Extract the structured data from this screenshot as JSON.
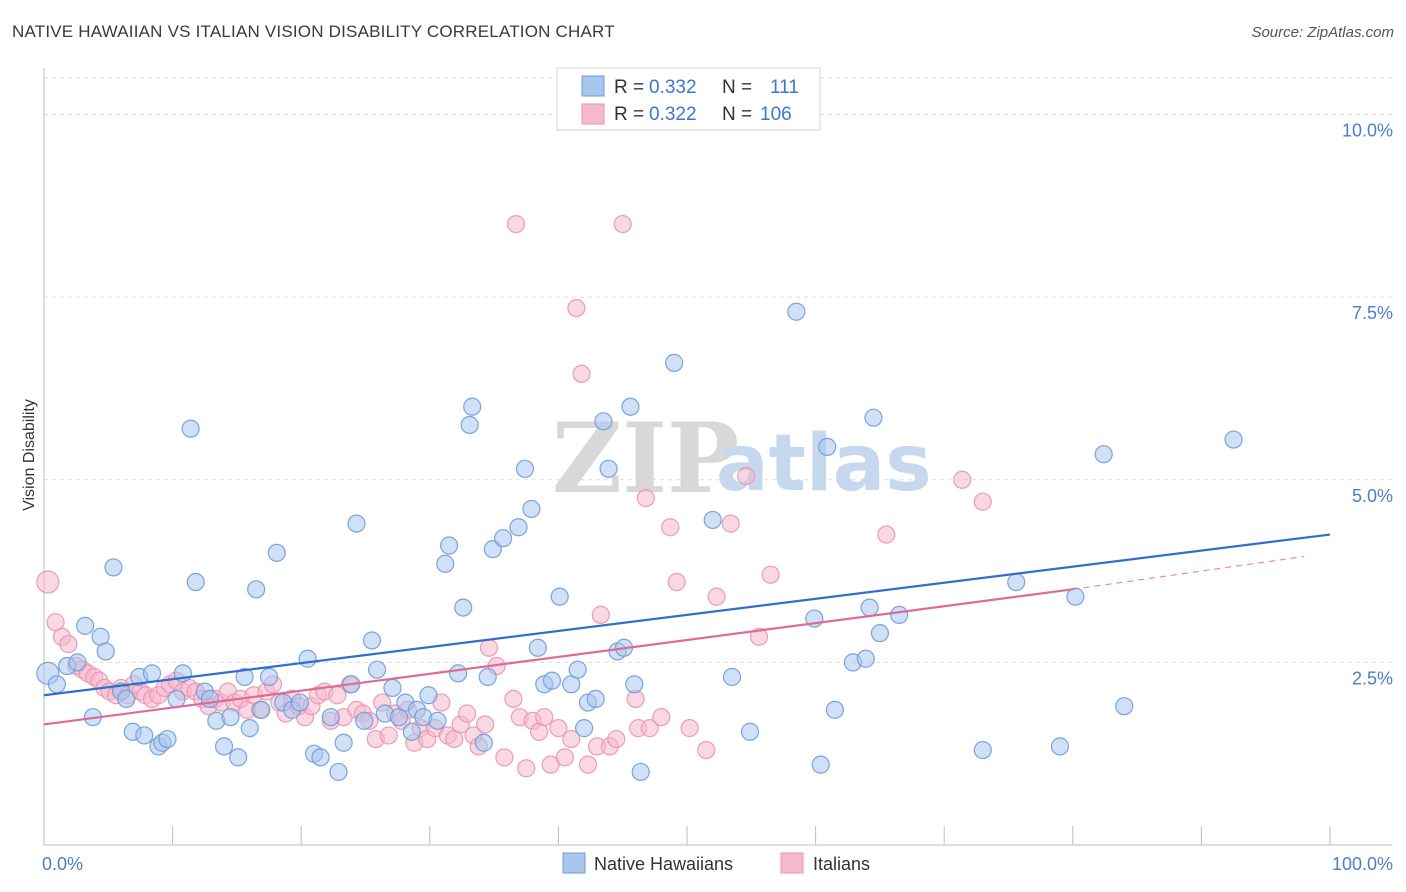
{
  "title": "NATIVE HAWAIIAN VS ITALIAN VISION DISABILITY CORRELATION CHART",
  "source": "Source: ZipAtlas.com",
  "watermark": {
    "zip": "ZIP",
    "atlas": "atlas"
  },
  "legend": {
    "rows": [
      {
        "r_label": "R = ",
        "r_value": "0.332",
        "n_label": "N = ",
        "n_value": "111"
      },
      {
        "r_label": "R = ",
        "r_value": "0.322",
        "n_label": "N = ",
        "n_value": "106"
      }
    ]
  },
  "colors": {
    "blue_fill": "#a9c6ee",
    "blue_stroke": "#6d9bd8",
    "blue_line": "#2f6fcc",
    "pink_fill": "#f5b8cc",
    "pink_stroke": "#e993b0",
    "pink_line": "#e06a97"
  },
  "chart_data": {
    "type": "scatter",
    "title": "NATIVE HAWAIIAN VS ITALIAN VISION DISABILITY CORRELATION CHART",
    "xlabel": "",
    "ylabel": "Vision Disability",
    "xlim": [
      0,
      100
    ],
    "ylim": [
      0,
      10.5
    ],
    "x_tick_labels": [
      "0.0%",
      "100.0%"
    ],
    "y_ticks": [
      2.5,
      5.0,
      7.5,
      10.0
    ],
    "y_tick_labels": [
      "2.5%",
      "5.0%",
      "7.5%",
      "10.0%"
    ],
    "grid": true,
    "legend_position": "top-center",
    "series": [
      {
        "name": "Native Hawaiians",
        "r": 0.332,
        "n": 111,
        "trend": {
          "x": [
            0,
            100
          ],
          "y": [
            2.05,
            4.25
          ]
        },
        "points": [
          [
            0.3,
            2.35
          ],
          [
            1.0,
            2.2
          ],
          [
            1.8,
            2.45
          ],
          [
            2.6,
            2.5
          ],
          [
            3.2,
            3.0
          ],
          [
            3.8,
            1.75
          ],
          [
            4.4,
            2.85
          ],
          [
            4.8,
            2.65
          ],
          [
            5.4,
            3.8
          ],
          [
            6.0,
            2.1
          ],
          [
            6.4,
            2.0
          ],
          [
            6.9,
            1.55
          ],
          [
            7.4,
            2.3
          ],
          [
            7.8,
            1.5
          ],
          [
            8.4,
            2.35
          ],
          [
            8.9,
            1.35
          ],
          [
            9.2,
            1.4
          ],
          [
            9.6,
            1.45
          ],
          [
            10.3,
            2.0
          ],
          [
            10.8,
            2.35
          ],
          [
            11.4,
            5.7
          ],
          [
            11.8,
            3.6
          ],
          [
            12.5,
            2.1
          ],
          [
            12.9,
            2.0
          ],
          [
            13.4,
            1.7
          ],
          [
            14.0,
            1.35
          ],
          [
            14.5,
            1.75
          ],
          [
            15.1,
            1.2
          ],
          [
            15.6,
            2.3
          ],
          [
            16.0,
            1.6
          ],
          [
            16.5,
            3.5
          ],
          [
            16.9,
            1.85
          ],
          [
            17.5,
            2.3
          ],
          [
            18.1,
            4.0
          ],
          [
            18.6,
            1.95
          ],
          [
            19.3,
            1.85
          ],
          [
            19.9,
            1.95
          ],
          [
            20.5,
            2.55
          ],
          [
            21.0,
            1.25
          ],
          [
            21.5,
            1.2
          ],
          [
            22.3,
            1.75
          ],
          [
            22.9,
            1.0
          ],
          [
            23.3,
            1.4
          ],
          [
            23.9,
            2.2
          ],
          [
            24.3,
            4.4
          ],
          [
            24.9,
            1.7
          ],
          [
            25.5,
            2.8
          ],
          [
            25.9,
            2.4
          ],
          [
            26.5,
            1.8
          ],
          [
            27.1,
            2.15
          ],
          [
            27.6,
            1.75
          ],
          [
            28.1,
            1.95
          ],
          [
            28.6,
            1.55
          ],
          [
            29.0,
            1.85
          ],
          [
            29.5,
            1.75
          ],
          [
            29.9,
            2.05
          ],
          [
            30.6,
            1.7
          ],
          [
            31.2,
            3.85
          ],
          [
            31.5,
            4.1
          ],
          [
            32.2,
            2.35
          ],
          [
            32.6,
            3.25
          ],
          [
            33.1,
            5.75
          ],
          [
            33.3,
            6.0
          ],
          [
            34.2,
            1.4
          ],
          [
            34.5,
            2.3
          ],
          [
            34.9,
            4.05
          ],
          [
            35.7,
            4.2
          ],
          [
            36.9,
            4.35
          ],
          [
            37.4,
            5.15
          ],
          [
            37.9,
            4.6
          ],
          [
            38.4,
            2.7
          ],
          [
            38.9,
            2.2
          ],
          [
            39.5,
            2.25
          ],
          [
            40.1,
            3.4
          ],
          [
            41.0,
            2.2
          ],
          [
            41.5,
            2.4
          ],
          [
            42.0,
            1.6
          ],
          [
            42.3,
            1.95
          ],
          [
            42.9,
            2.0
          ],
          [
            43.5,
            5.8
          ],
          [
            43.9,
            5.15
          ],
          [
            44.6,
            2.65
          ],
          [
            45.1,
            2.7
          ],
          [
            45.6,
            6.0
          ],
          [
            45.9,
            2.2
          ],
          [
            46.4,
            1.0
          ],
          [
            49.0,
            6.6
          ],
          [
            52.0,
            4.45
          ],
          [
            53.5,
            2.3
          ],
          [
            54.9,
            1.55
          ],
          [
            58.5,
            7.3
          ],
          [
            59.9,
            3.1
          ],
          [
            60.4,
            1.1
          ],
          [
            60.9,
            5.45
          ],
          [
            61.5,
            1.85
          ],
          [
            62.9,
            2.5
          ],
          [
            63.9,
            2.55
          ],
          [
            64.2,
            3.25
          ],
          [
            64.5,
            5.85
          ],
          [
            65.0,
            2.9
          ],
          [
            66.5,
            3.15
          ],
          [
            73.0,
            1.3
          ],
          [
            75.6,
            3.6
          ],
          [
            79.0,
            1.35
          ],
          [
            80.2,
            3.4
          ],
          [
            82.4,
            5.35
          ],
          [
            84.0,
            1.9
          ],
          [
            92.5,
            5.55
          ]
        ]
      },
      {
        "name": "Italians",
        "r": 0.322,
        "n": 106,
        "trend": {
          "x": [
            0,
            80
          ],
          "y": [
            1.65,
            3.5
          ]
        },
        "trend_dashed": {
          "x": [
            80,
            98
          ],
          "y": [
            3.5,
            3.95
          ]
        },
        "points": [
          [
            0.3,
            3.6
          ],
          [
            0.9,
            3.05
          ],
          [
            1.4,
            2.85
          ],
          [
            1.9,
            2.75
          ],
          [
            2.5,
            2.45
          ],
          [
            3.0,
            2.4
          ],
          [
            3.4,
            2.35
          ],
          [
            3.9,
            2.3
          ],
          [
            4.3,
            2.25
          ],
          [
            4.7,
            2.15
          ],
          [
            5.1,
            2.1
          ],
          [
            5.6,
            2.05
          ],
          [
            6.0,
            2.15
          ],
          [
            6.5,
            2.05
          ],
          [
            7.0,
            2.2
          ],
          [
            7.5,
            2.1
          ],
          [
            7.9,
            2.05
          ],
          [
            8.4,
            2.0
          ],
          [
            8.9,
            2.05
          ],
          [
            9.4,
            2.15
          ],
          [
            9.8,
            2.2
          ],
          [
            10.3,
            2.25
          ],
          [
            10.8,
            2.1
          ],
          [
            11.3,
            2.15
          ],
          [
            11.8,
            2.1
          ],
          [
            12.3,
            2.0
          ],
          [
            12.8,
            1.9
          ],
          [
            13.3,
            2.0
          ],
          [
            13.8,
            1.95
          ],
          [
            14.3,
            2.1
          ],
          [
            14.8,
            1.95
          ],
          [
            15.3,
            2.0
          ],
          [
            15.8,
            1.85
          ],
          [
            16.3,
            2.05
          ],
          [
            16.8,
            1.85
          ],
          [
            17.3,
            2.1
          ],
          [
            17.8,
            2.2
          ],
          [
            18.3,
            1.95
          ],
          [
            18.8,
            1.8
          ],
          [
            19.3,
            2.0
          ],
          [
            19.8,
            1.9
          ],
          [
            20.3,
            1.75
          ],
          [
            20.8,
            1.9
          ],
          [
            21.3,
            2.05
          ],
          [
            21.8,
            2.1
          ],
          [
            22.3,
            1.7
          ],
          [
            22.8,
            2.05
          ],
          [
            23.3,
            1.75
          ],
          [
            23.8,
            2.2
          ],
          [
            24.3,
            1.85
          ],
          [
            24.8,
            1.8
          ],
          [
            25.3,
            1.7
          ],
          [
            25.8,
            1.45
          ],
          [
            26.3,
            1.95
          ],
          [
            26.8,
            1.5
          ],
          [
            27.3,
            1.8
          ],
          [
            27.8,
            1.7
          ],
          [
            28.3,
            1.85
          ],
          [
            28.8,
            1.4
          ],
          [
            29.3,
            1.6
          ],
          [
            29.8,
            1.45
          ],
          [
            30.4,
            1.6
          ],
          [
            30.9,
            1.95
          ],
          [
            31.4,
            1.5
          ],
          [
            31.9,
            1.45
          ],
          [
            32.4,
            1.65
          ],
          [
            32.9,
            1.8
          ],
          [
            33.4,
            1.5
          ],
          [
            33.8,
            1.35
          ],
          [
            34.3,
            1.65
          ],
          [
            34.6,
            2.7
          ],
          [
            35.2,
            2.45
          ],
          [
            35.8,
            1.2
          ],
          [
            36.5,
            2.0
          ],
          [
            37.0,
            1.75
          ],
          [
            37.5,
            1.05
          ],
          [
            38.0,
            1.7
          ],
          [
            38.5,
            1.55
          ],
          [
            38.9,
            1.75
          ],
          [
            39.4,
            1.1
          ],
          [
            40.0,
            1.6
          ],
          [
            40.5,
            1.2
          ],
          [
            41.0,
            1.45
          ],
          [
            41.4,
            7.35
          ],
          [
            41.8,
            6.45
          ],
          [
            42.3,
            1.1
          ],
          [
            43.0,
            1.35
          ],
          [
            43.3,
            3.15
          ],
          [
            44.0,
            1.35
          ],
          [
            44.5,
            1.45
          ],
          [
            45.0,
            8.5
          ],
          [
            46.0,
            2.0
          ],
          [
            46.2,
            1.6
          ],
          [
            46.8,
            4.75
          ],
          [
            47.1,
            1.6
          ],
          [
            48.0,
            1.75
          ],
          [
            48.7,
            4.35
          ],
          [
            49.2,
            3.6
          ],
          [
            50.2,
            1.6
          ],
          [
            51.5,
            1.3
          ],
          [
            52.3,
            3.4
          ],
          [
            53.4,
            4.4
          ],
          [
            54.6,
            5.05
          ],
          [
            55.6,
            2.85
          ],
          [
            56.5,
            3.7
          ],
          [
            65.5,
            4.25
          ],
          [
            71.4,
            5.0
          ],
          [
            73.0,
            4.7
          ],
          [
            36.7,
            8.5
          ]
        ]
      }
    ]
  },
  "bottom_legend": {
    "items": [
      "Native Hawaiians",
      "Italians"
    ]
  }
}
